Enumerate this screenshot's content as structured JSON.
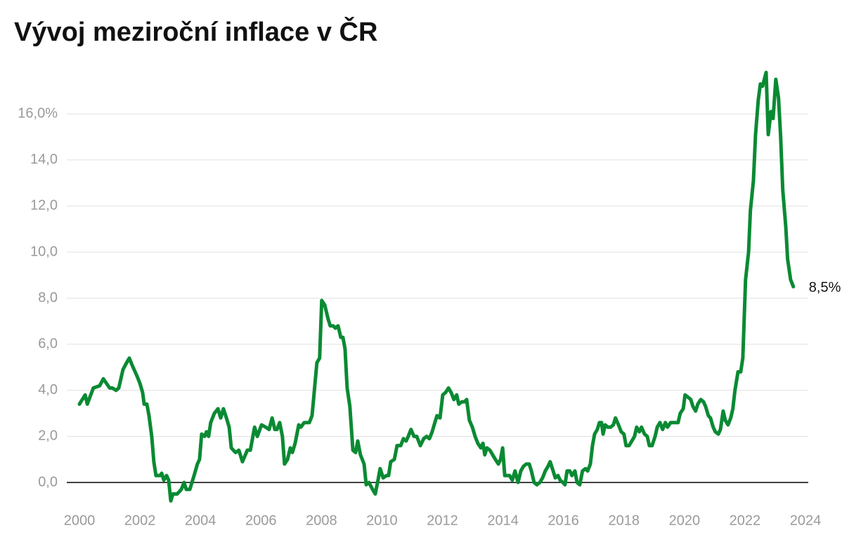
{
  "chart_data": {
    "type": "line",
    "title": "Vývoj meziroční inflace v ČR",
    "color": "#0a8a33",
    "xlim": [
      2000,
      2024
    ],
    "xticks": [
      2000,
      2002,
      2004,
      2006,
      2008,
      2010,
      2012,
      2014,
      2016,
      2018,
      2020,
      2022,
      2024
    ],
    "ylim": [
      -0.9,
      18
    ],
    "yticks": [
      {
        "value": 0,
        "label": "0,0"
      },
      {
        "value": 2,
        "label": "2,0"
      },
      {
        "value": 4,
        "label": "4,0"
      },
      {
        "value": 6,
        "label": "6,0"
      },
      {
        "value": 8,
        "label": "8,0"
      },
      {
        "value": 10,
        "label": "10,0"
      },
      {
        "value": 12,
        "label": "12,0"
      },
      {
        "value": 14,
        "label": "14,0"
      },
      {
        "value": 16,
        "label": "16,0%"
      }
    ],
    "grid": true,
    "annotations": [
      {
        "text": "8,5%"
      }
    ],
    "x": [
      2000.0,
      2000.19,
      2000.26,
      2000.46,
      2000.67,
      2000.79,
      2001.0,
      2001.09,
      2001.21,
      2001.3,
      2001.44,
      2001.56,
      2001.65,
      2001.74,
      2001.91,
      2002.0,
      2002.09,
      2002.14,
      2002.23,
      2002.3,
      2002.39,
      2002.46,
      2002.53,
      2002.67,
      2002.72,
      2002.79,
      2002.88,
      2002.95,
      2003.02,
      2003.09,
      2003.23,
      2003.37,
      2003.46,
      2003.53,
      2003.65,
      2003.79,
      2003.9,
      2003.97,
      2004.04,
      2004.14,
      2004.2,
      2004.27,
      2004.34,
      2004.46,
      2004.58,
      2004.67,
      2004.76,
      2004.86,
      2004.95,
      2005.02,
      2005.16,
      2005.27,
      2005.39,
      2005.55,
      2005.65,
      2005.79,
      2005.88,
      2006.02,
      2006.16,
      2006.27,
      2006.37,
      2006.46,
      2006.53,
      2006.62,
      2006.71,
      2006.78,
      2006.88,
      2006.97,
      2007.04,
      2007.13,
      2007.25,
      2007.32,
      2007.43,
      2007.6,
      2007.69,
      2007.76,
      2007.85,
      2007.94,
      2008.01,
      2008.11,
      2008.22,
      2008.29,
      2008.39,
      2008.46,
      2008.55,
      2008.64,
      2008.71,
      2008.78,
      2008.85,
      2008.94,
      2009.04,
      2009.13,
      2009.2,
      2009.29,
      2009.41,
      2009.48,
      2009.57,
      2009.69,
      2009.78,
      2009.87,
      2009.94,
      2010.04,
      2010.15,
      2010.22,
      2010.29,
      2010.41,
      2010.5,
      2010.62,
      2010.71,
      2010.8,
      2010.87,
      2010.96,
      2011.06,
      2011.15,
      2011.27,
      2011.38,
      2011.48,
      2011.57,
      2011.66,
      2011.75,
      2011.82,
      2011.92,
      2012.01,
      2012.1,
      2012.2,
      2012.29,
      2012.38,
      2012.47,
      2012.54,
      2012.64,
      2012.73,
      2012.8,
      2012.89,
      2012.99,
      2013.08,
      2013.17,
      2013.27,
      2013.34,
      2013.4,
      2013.47,
      2013.57,
      2013.66,
      2013.75,
      2013.85,
      2013.92,
      2013.99,
      2014.06,
      2014.22,
      2014.31,
      2014.4,
      2014.5,
      2014.59,
      2014.68,
      2014.77,
      2014.87,
      2014.94,
      2015.03,
      2015.12,
      2015.22,
      2015.31,
      2015.4,
      2015.49,
      2015.56,
      2015.66,
      2015.73,
      2015.82,
      2015.89,
      2015.98,
      2016.05,
      2016.12,
      2016.21,
      2016.28,
      2016.38,
      2016.45,
      2016.54,
      2016.63,
      2016.73,
      2016.8,
      2016.89,
      2016.96,
      2017.03,
      2017.12,
      2017.19,
      2017.26,
      2017.31,
      2017.38,
      2017.47,
      2017.56,
      2017.65,
      2017.72,
      2017.82,
      2017.91,
      2018.0,
      2018.07,
      2018.17,
      2018.26,
      2018.35,
      2018.42,
      2018.51,
      2018.58,
      2018.68,
      2018.77,
      2018.84,
      2018.93,
      2019.03,
      2019.1,
      2019.19,
      2019.28,
      2019.37,
      2019.44,
      2019.54,
      2019.63,
      2019.72,
      2019.79,
      2019.86,
      2019.96,
      2020.02,
      2020.12,
      2020.21,
      2020.28,
      2020.37,
      2020.44,
      2020.54,
      2020.63,
      2020.7,
      2020.79,
      2020.86,
      2020.95,
      2021.02,
      2021.12,
      2021.19,
      2021.28,
      2021.35,
      2021.44,
      2021.53,
      2021.6,
      2021.67,
      2021.77,
      2021.86,
      2021.93,
      2022.02,
      2022.12,
      2022.18,
      2022.28,
      2022.35,
      2022.44,
      2022.51,
      2022.58,
      2022.7,
      2022.77,
      2022.86,
      2022.93,
      2023.02,
      2023.11,
      2023.18,
      2023.25,
      2023.35,
      2023.41,
      2023.51,
      2023.6
    ],
    "values": [
      3.4,
      3.8,
      3.4,
      4.1,
      4.2,
      4.5,
      4.1,
      4.1,
      4.0,
      4.1,
      4.9,
      5.2,
      5.4,
      5.1,
      4.6,
      4.3,
      3.9,
      3.4,
      3.4,
      2.9,
      2.0,
      0.9,
      0.3,
      0.3,
      0.4,
      0.1,
      0.3,
      0.1,
      -0.8,
      -0.5,
      -0.5,
      -0.3,
      0.0,
      -0.3,
      -0.3,
      0.3,
      0.8,
      1.0,
      2.1,
      2.0,
      2.2,
      2.0,
      2.6,
      3.0,
      3.2,
      2.8,
      3.2,
      2.8,
      2.4,
      1.5,
      1.3,
      1.4,
      0.9,
      1.4,
      1.4,
      2.4,
      2.0,
      2.5,
      2.4,
      2.3,
      2.8,
      2.3,
      2.3,
      2.6,
      2.0,
      0.8,
      1.0,
      1.5,
      1.3,
      1.7,
      2.5,
      2.4,
      2.6,
      2.6,
      2.9,
      3.9,
      5.2,
      5.4,
      7.9,
      7.7,
      7.1,
      6.8,
      6.8,
      6.7,
      6.8,
      6.3,
      6.3,
      5.8,
      4.1,
      3.3,
      1.4,
      1.3,
      1.8,
      1.2,
      0.8,
      -0.1,
      0.0,
      -0.3,
      -0.5,
      0.1,
      0.6,
      0.2,
      0.3,
      0.3,
      0.9,
      1.0,
      1.6,
      1.6,
      1.9,
      1.8,
      2.0,
      2.3,
      2.0,
      2.0,
      1.6,
      1.9,
      2.0,
      1.9,
      2.2,
      2.6,
      2.9,
      2.8,
      3.8,
      3.9,
      4.1,
      3.9,
      3.6,
      3.8,
      3.4,
      3.5,
      3.5,
      3.6,
      2.7,
      2.4,
      2.0,
      1.7,
      1.5,
      1.7,
      1.2,
      1.5,
      1.4,
      1.2,
      1.0,
      0.8,
      1.0,
      1.5,
      0.3,
      0.3,
      0.1,
      0.5,
      0.0,
      0.5,
      0.7,
      0.8,
      0.8,
      0.5,
      0.0,
      -0.1,
      0.0,
      0.2,
      0.5,
      0.7,
      0.9,
      0.5,
      0.2,
      0.3,
      0.1,
      0.0,
      -0.1,
      0.5,
      0.5,
      0.3,
      0.5,
      0.0,
      -0.1,
      0.5,
      0.6,
      0.5,
      0.8,
      1.6,
      2.1,
      2.3,
      2.6,
      2.6,
      2.1,
      2.5,
      2.4,
      2.4,
      2.5,
      2.8,
      2.5,
      2.2,
      2.1,
      1.6,
      1.6,
      1.8,
      2.0,
      2.4,
      2.2,
      2.4,
      2.1,
      2.0,
      1.6,
      1.6,
      2.0,
      2.4,
      2.6,
      2.3,
      2.6,
      2.4,
      2.6,
      2.6,
      2.6,
      2.6,
      3.0,
      3.2,
      3.8,
      3.7,
      3.6,
      3.3,
      3.1,
      3.4,
      3.6,
      3.5,
      3.3,
      2.9,
      2.8,
      2.4,
      2.2,
      2.1,
      2.3,
      3.1,
      2.7,
      2.5,
      2.8,
      3.2,
      4.0,
      4.8,
      4.8,
      5.4,
      8.8,
      10.0,
      11.8,
      13.1,
      15.1,
      16.6,
      17.3,
      17.2,
      17.8,
      15.1,
      16.1,
      15.8,
      17.5,
      16.7,
      15.0,
      12.7,
      11.1,
      9.7,
      8.8,
      8.5
    ]
  }
}
